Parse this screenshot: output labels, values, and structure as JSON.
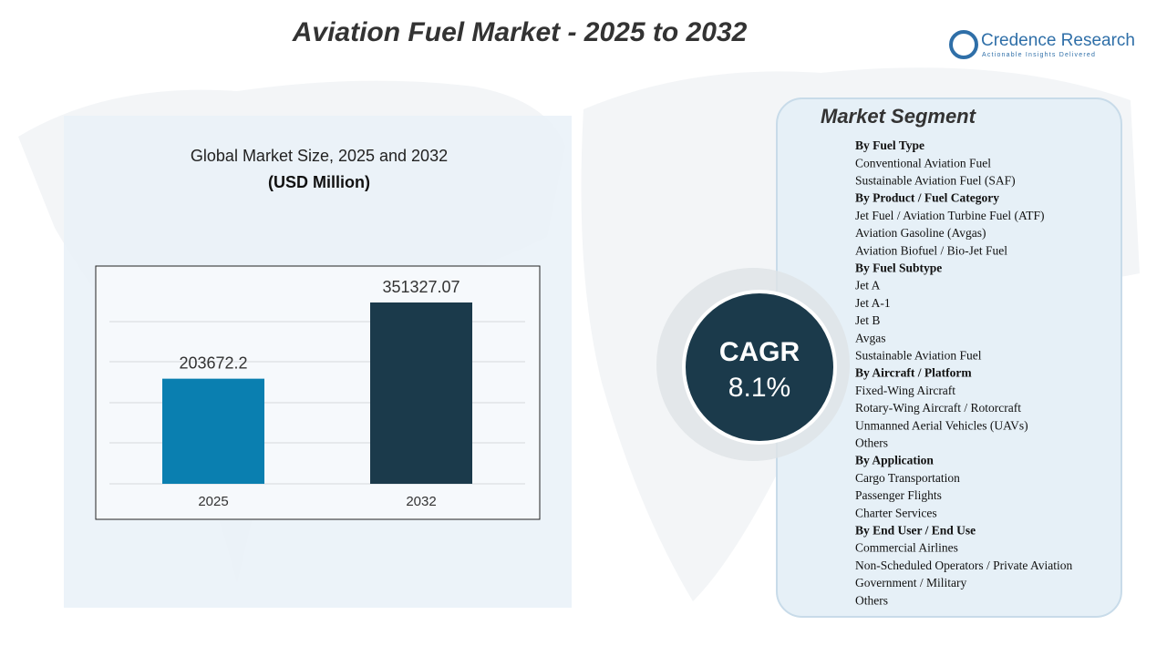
{
  "title": "Aviation Fuel Market - 2025 to 2032",
  "brand": {
    "name": "Credence Research",
    "tagline": "Actionable Insights Delivered"
  },
  "chart_data": {
    "type": "bar",
    "title": "Global Market Size, 2025 and 2032",
    "subtitle": "(USD Million)",
    "categories": [
      "2025",
      "2032"
    ],
    "values": [
      203672.2,
      351327.07
    ],
    "colors": [
      "#0a7fb0",
      "#1b3a4b"
    ]
  },
  "cagr": {
    "label": "CAGR",
    "value": "8.1%"
  },
  "segments": {
    "title": "Market Segment",
    "groups": [
      {
        "heading": "By Fuel Type",
        "items": [
          "Conventional Aviation Fuel",
          "Sustainable Aviation Fuel (SAF)"
        ]
      },
      {
        "heading": "By Product / Fuel Category",
        "items": [
          "Jet Fuel / Aviation Turbine Fuel (ATF)",
          "Aviation Gasoline (Avgas)",
          "Aviation Biofuel / Bio-Jet Fuel"
        ]
      },
      {
        "heading": "By Fuel Subtype",
        "items": [
          "Jet A",
          "Jet A-1",
          "Jet B",
          "Avgas",
          "Sustainable Aviation Fuel"
        ]
      },
      {
        "heading": "By Aircraft / Platform",
        "items": [
          "Fixed-Wing Aircraft",
          "Rotary-Wing Aircraft / Rotorcraft",
          "Unmanned Aerial Vehicles (UAVs)",
          "Others"
        ]
      },
      {
        "heading": "By Application",
        "items": [
          "Cargo Transportation",
          "Passenger Flights",
          "Charter Services"
        ]
      },
      {
        "heading": "By End User / End Use",
        "items": [
          "Commercial Airlines",
          "Non-Scheduled Operators / Private Aviation",
          "Government / Military",
          "Others"
        ]
      }
    ]
  }
}
